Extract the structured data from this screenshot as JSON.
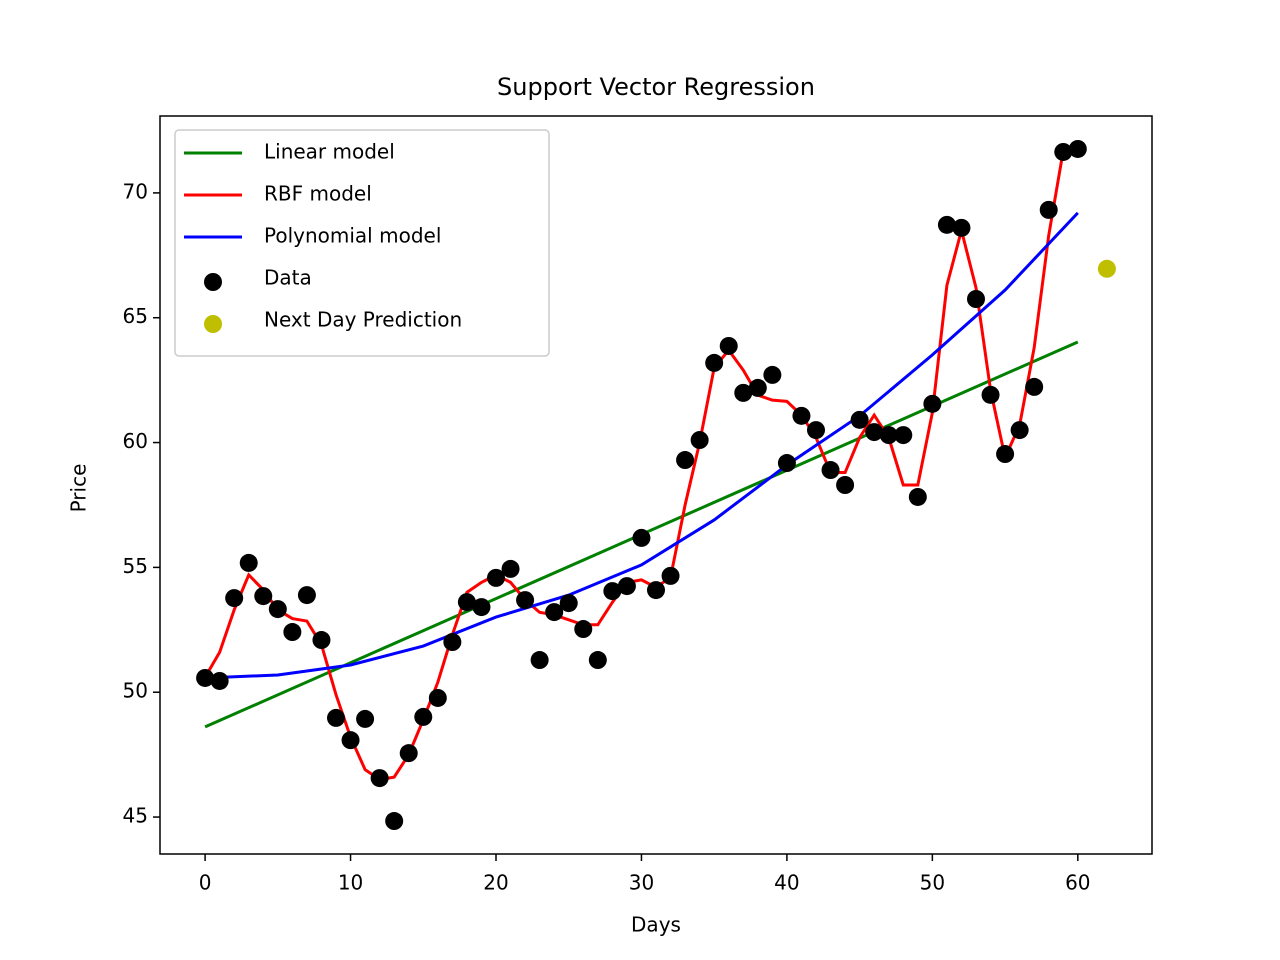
{
  "chart_data": {
    "type": "line",
    "title": "Support Vector Regression",
    "x_label": "Days",
    "y_label": "Price",
    "xlim": [
      -3.1,
      65.1
    ],
    "ylim": [
      43.52,
      73.08
    ],
    "xticks": [
      0,
      10,
      20,
      30,
      40,
      50,
      60
    ],
    "yticks": [
      45,
      50,
      55,
      60,
      65,
      70
    ],
    "legend": "upper left",
    "series": [
      {
        "name": "Linear model",
        "color": "#008000",
        "style": "line",
        "x": [
          0,
          60
        ],
        "values": [
          48.61,
          64.03
        ]
      },
      {
        "name": "RBF model",
        "color": "#ff0000",
        "style": "line",
        "x": [
          0,
          1,
          2,
          3,
          4,
          5,
          6,
          7,
          8,
          9,
          10,
          11,
          12,
          13,
          14,
          15,
          16,
          17,
          18,
          19,
          20,
          21,
          22,
          23,
          24,
          25,
          26,
          27,
          28,
          29,
          30,
          31,
          32,
          33,
          34,
          35,
          36,
          37,
          38,
          39,
          40,
          41,
          42,
          43,
          44,
          45,
          46,
          47,
          48,
          49,
          50,
          51,
          52,
          53,
          54,
          55,
          56,
          57,
          58,
          59,
          60
        ],
        "values": [
          50.6,
          51.6,
          53.3,
          54.7,
          54.1,
          53.3,
          52.95,
          52.85,
          51.9,
          49.9,
          48.2,
          46.9,
          46.5,
          46.6,
          47.5,
          48.9,
          50.4,
          52.3,
          54.0,
          54.4,
          54.7,
          54.4,
          53.7,
          53.2,
          53.1,
          52.9,
          52.7,
          52.7,
          53.6,
          54.4,
          54.5,
          54.2,
          54.6,
          57.5,
          60.0,
          63.0,
          63.7,
          62.9,
          61.9,
          61.7,
          61.65,
          61.1,
          60.2,
          58.8,
          58.8,
          60.2,
          61.1,
          60.2,
          58.3,
          58.3,
          61.2,
          66.3,
          68.5,
          66.2,
          62.1,
          59.4,
          60.7,
          63.8,
          68.3,
          71.7,
          71.7
        ]
      },
      {
        "name": "Polynomial model",
        "color": "#0000ff",
        "style": "line",
        "x": [
          0,
          5,
          10,
          15,
          20,
          25,
          30,
          35,
          40,
          45,
          50,
          55,
          60
        ],
        "values": [
          50.57,
          50.69,
          51.09,
          51.85,
          53.01,
          53.89,
          55.1,
          56.9,
          59.1,
          61.07,
          63.51,
          66.11,
          69.2
        ]
      },
      {
        "name": "Data",
        "color": "#000000",
        "style": "scatter",
        "x": [
          0,
          1,
          2,
          3,
          4,
          5,
          6,
          7,
          8,
          9,
          10,
          11,
          12,
          13,
          14,
          15,
          16,
          17,
          18,
          19,
          20,
          21,
          22,
          23,
          24,
          25,
          26,
          27,
          28,
          29,
          30,
          31,
          32,
          33,
          34,
          35,
          36,
          37,
          38,
          39,
          40,
          41,
          42,
          43,
          44,
          45,
          46,
          47,
          48,
          49,
          50,
          51,
          52,
          53,
          54,
          55,
          56,
          57,
          58,
          59,
          60
        ],
        "values": [
          50.57,
          50.45,
          53.77,
          55.18,
          53.85,
          53.33,
          52.41,
          53.89,
          52.09,
          48.97,
          48.08,
          48.93,
          46.56,
          44.84,
          47.56,
          49.01,
          49.77,
          52.01,
          53.61,
          53.41,
          54.58,
          54.94,
          53.69,
          51.29,
          53.21,
          53.57,
          52.53,
          51.29,
          54.05,
          54.25,
          56.18,
          54.09,
          54.66,
          59.3,
          60.1,
          63.19,
          63.87,
          61.99,
          62.19,
          62.71,
          59.18,
          61.07,
          60.5,
          58.9,
          58.3,
          60.91,
          60.42,
          60.3,
          60.3,
          57.82,
          61.55,
          68.72,
          68.6,
          65.75,
          61.91,
          59.54,
          60.5,
          62.23,
          69.32,
          71.64,
          71.76
        ]
      },
      {
        "name": "Next Day Prediction",
        "color": "#bfbf00",
        "style": "scatter",
        "x": [
          62
        ],
        "values": [
          66.96
        ]
      }
    ]
  }
}
